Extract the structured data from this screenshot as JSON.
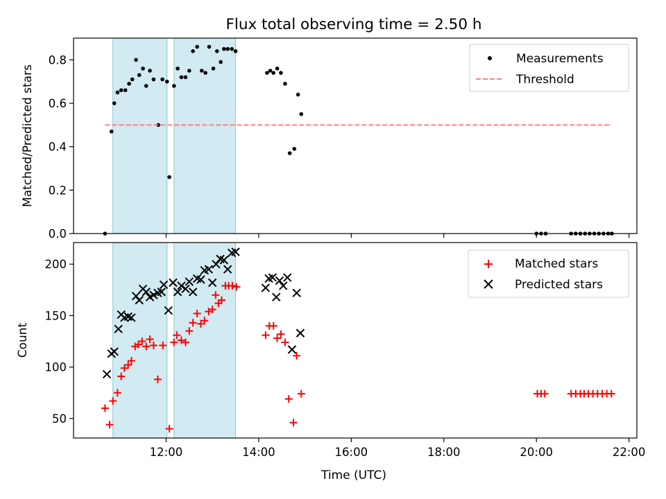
{
  "chart_data": [
    {
      "type": "scatter",
      "title": "Flux total observing time = 2.50 h",
      "xlabel": "",
      "ylabel": "Matched/Predicted stars",
      "ylim": [
        0,
        0.9
      ],
      "yticks": [
        0.0,
        0.2,
        0.4,
        0.6,
        0.8
      ],
      "ytick_labels": [
        "0.0",
        "0.2",
        "0.4",
        "0.6",
        "0.8"
      ],
      "xlim": [
        10.0,
        22.17
      ],
      "xticks": [
        12,
        14,
        16,
        18,
        20,
        22
      ],
      "legend_position": "top-right",
      "shaded_intervals": [
        [
          10.85,
          12.02
        ],
        [
          12.17,
          13.5
        ]
      ],
      "shade_color": "#add8e6",
      "series": [
        {
          "name": "Measurements",
          "marker": "dot",
          "color": "#000000",
          "x": [
            10.68,
            10.82,
            10.88,
            10.95,
            11.03,
            11.12,
            11.2,
            11.27,
            11.35,
            11.42,
            11.5,
            11.57,
            11.65,
            11.73,
            11.83,
            11.92,
            12.02,
            12.07,
            12.17,
            12.25,
            12.33,
            12.42,
            12.5,
            12.58,
            12.67,
            12.77,
            12.85,
            12.93,
            13.02,
            13.1,
            13.18,
            13.25,
            13.33,
            13.42,
            13.5,
            14.18,
            14.25,
            14.32,
            14.4,
            14.48,
            14.57,
            14.67,
            14.77,
            14.85,
            14.92,
            20.0,
            20.1,
            20.2,
            20.75,
            20.85,
            20.95,
            21.05,
            21.15,
            21.25,
            21.35,
            21.45,
            21.55,
            21.63
          ],
          "y": [
            0.0,
            0.47,
            0.6,
            0.65,
            0.66,
            0.66,
            0.69,
            0.71,
            0.8,
            0.73,
            0.76,
            0.68,
            0.75,
            0.71,
            0.5,
            0.71,
            0.7,
            0.26,
            0.68,
            0.76,
            0.72,
            0.72,
            0.75,
            0.84,
            0.86,
            0.75,
            0.74,
            0.86,
            0.76,
            0.84,
            0.79,
            0.85,
            0.85,
            0.85,
            0.84,
            0.74,
            0.75,
            0.74,
            0.76,
            0.74,
            0.69,
            0.37,
            0.39,
            0.64,
            0.55,
            0.0,
            0.0,
            0.0,
            0.0,
            0.0,
            0.0,
            0.0,
            0.0,
            0.0,
            0.0,
            0.0,
            0.0,
            0.0
          ]
        },
        {
          "name": "Threshold",
          "style": "dashed-line",
          "color": "#ff7f7f",
          "x": [
            10.68,
            21.63
          ],
          "y": [
            0.5,
            0.5
          ]
        }
      ]
    },
    {
      "type": "scatter",
      "title": "",
      "xlabel": "Time (UTC)",
      "ylabel": "Count",
      "ylim": [
        31,
        221
      ],
      "yticks": [
        50,
        100,
        150,
        200
      ],
      "ytick_labels": [
        "50",
        "100",
        "150",
        "200"
      ],
      "xlim": [
        10.0,
        22.17
      ],
      "xticks": [
        12,
        14,
        16,
        18,
        20,
        22
      ],
      "xtick_labels": [
        "12:00",
        "14:00",
        "16:00",
        "18:00",
        "20:00",
        "22:00"
      ],
      "legend_position": "top-right",
      "shaded_intervals": [
        [
          10.85,
          12.02
        ],
        [
          12.17,
          13.5
        ]
      ],
      "shade_color": "#add8e6",
      "series": [
        {
          "name": "Matched stars",
          "marker": "plus",
          "color": "#ff0000",
          "x": [
            10.68,
            10.78,
            10.85,
            10.95,
            11.03,
            11.1,
            11.18,
            11.25,
            11.33,
            11.4,
            11.48,
            11.57,
            11.65,
            11.73,
            11.82,
            11.93,
            12.07,
            12.17,
            12.23,
            12.33,
            12.42,
            12.5,
            12.58,
            12.67,
            12.75,
            12.83,
            12.92,
            13.0,
            13.07,
            13.13,
            13.2,
            13.28,
            13.35,
            13.43,
            13.52,
            14.15,
            14.23,
            14.32,
            14.4,
            14.48,
            14.57,
            14.65,
            14.75,
            14.82,
            14.92,
            20.02,
            20.1,
            20.18,
            20.75,
            20.85,
            20.95,
            21.03,
            21.12,
            21.22,
            21.32,
            21.42,
            21.52,
            21.62
          ],
          "y": [
            60,
            44,
            67,
            75,
            91,
            99,
            102,
            106,
            120,
            122,
            125,
            120,
            127,
            121,
            88,
            121,
            40,
            124,
            131,
            126,
            124,
            135,
            143,
            152,
            142,
            145,
            154,
            156,
            170,
            162,
            165,
            179,
            179,
            179,
            178,
            131,
            140,
            140,
            128,
            132,
            124,
            69,
            46,
            111,
            74,
            74,
            74,
            74,
            74,
            74,
            74,
            74,
            74,
            74,
            74,
            74,
            74,
            74
          ]
        },
        {
          "name": "Predicted stars",
          "marker": "x",
          "color": "#000000",
          "x": [
            10.72,
            10.82,
            10.88,
            10.97,
            11.03,
            11.1,
            11.18,
            11.25,
            11.35,
            11.42,
            11.5,
            11.57,
            11.65,
            11.73,
            11.82,
            11.9,
            11.95,
            12.05,
            12.15,
            12.25,
            12.33,
            12.42,
            12.5,
            12.58,
            12.67,
            12.75,
            12.83,
            12.92,
            13.0,
            13.08,
            13.17,
            13.25,
            13.33,
            13.42,
            13.5,
            14.15,
            14.22,
            14.3,
            14.38,
            14.45,
            14.53,
            14.62,
            14.72,
            14.82,
            14.9
          ],
          "y": [
            93,
            113,
            115,
            137,
            151,
            148,
            149,
            148,
            169,
            165,
            176,
            173,
            168,
            170,
            172,
            173,
            180,
            155,
            182,
            173,
            179,
            176,
            183,
            173,
            186,
            185,
            194,
            195,
            182,
            200,
            205,
            204,
            195,
            211,
            212,
            177,
            186,
            187,
            168,
            184,
            179,
            187,
            117,
            172,
            133
          ]
        }
      ]
    }
  ]
}
